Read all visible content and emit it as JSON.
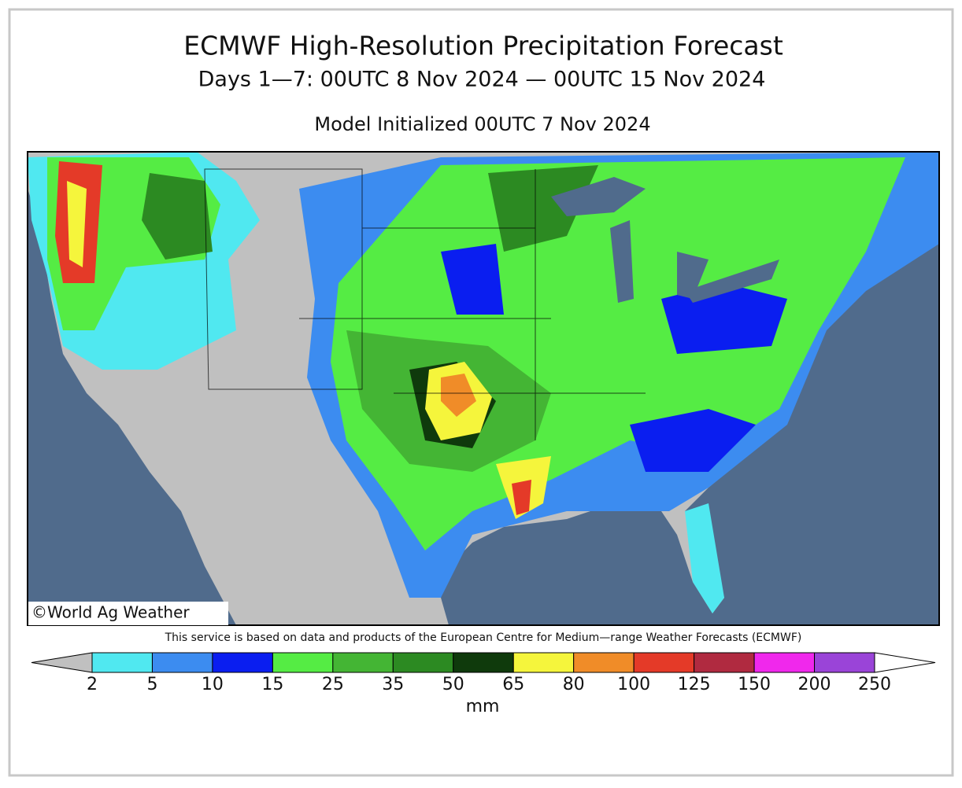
{
  "header": {
    "title": "ECMWF High-Resolution Precipitation Forecast",
    "subtitle": "Days 1—7: 00UTC 8 Nov 2024 — 00UTC 15 Nov 2024",
    "initialized": "Model Initialized 00UTC 7 Nov 2024"
  },
  "map": {
    "copyright": "©World Ag Weather",
    "attribution": "This service is based on data and products of the European Centre for Medium—range Weather Forecasts (ECMWF)"
  },
  "legend": {
    "ticks": [
      "2",
      "5",
      "10",
      "15",
      "25",
      "35",
      "50",
      "65",
      "80",
      "100",
      "125",
      "150",
      "200",
      "250"
    ],
    "colors": [
      "#c0c0c0",
      "#50e8f0",
      "#3c8cf0",
      "#0a1ef0",
      "#55ec44",
      "#44b534",
      "#2c8a22",
      "#0f3a0c",
      "#f5f53c",
      "#f08c28",
      "#e43a28",
      "#b02a40",
      "#f028ec",
      "#9a44d8",
      "#ffffff"
    ],
    "unit": "mm"
  }
}
